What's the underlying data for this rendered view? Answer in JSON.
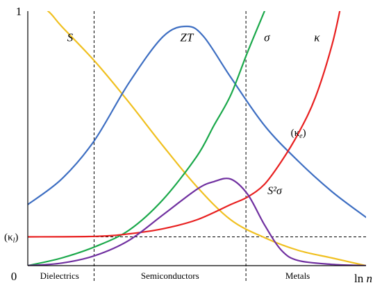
{
  "chart_data": {
    "type": "line",
    "title": "",
    "xlabel": "ln n",
    "ylabel": "",
    "xlim": [
      0,
      1
    ],
    "ylim": [
      0,
      1
    ],
    "y_ticks": [
      {
        "value": 1,
        "label": "1"
      },
      {
        "value": 0,
        "label": "0"
      },
      {
        "value": 0.113,
        "label": "(κl)"
      }
    ],
    "x_axis_label": "ln n",
    "regions": [
      {
        "name": "Dielectrics",
        "from": 0,
        "to": 0.196
      },
      {
        "name": "Semiconductors",
        "from": 0.196,
        "to": 0.645
      },
      {
        "name": "Metals",
        "from": 0.645,
        "to": 1
      }
    ],
    "reference_lines": [
      {
        "orientation": "vertical",
        "x": 0.196
      },
      {
        "orientation": "vertical",
        "x": 0.645
      },
      {
        "orientation": "horizontal",
        "y": 0.113
      }
    ],
    "annotations": [
      {
        "text": "S",
        "x": 0.125,
        "y": 0.882
      },
      {
        "text": "ZT",
        "x": 0.47,
        "y": 0.882
      },
      {
        "text": "σ",
        "x": 0.707,
        "y": 0.882
      },
      {
        "text": "κ",
        "x": 0.855,
        "y": 0.882
      },
      {
        "text": "(κe)",
        "x": 0.8,
        "y": 0.51
      },
      {
        "text": "S²σ",
        "x": 0.73,
        "y": 0.28
      }
    ],
    "series": [
      {
        "color": "#f0c020",
        "x": [
          0,
          0.06,
          0.1,
          0.2,
          0.3,
          0.4,
          0.5,
          0.6,
          0.7,
          0.8,
          0.9,
          1.0
        ],
        "values": [
          1.05,
          1.0,
          0.94,
          0.8,
          0.64,
          0.47,
          0.31,
          0.18,
          0.11,
          0.06,
          0.03,
          0.0
        ]
      },
      {
        "color": "#3d6ec2",
        "x": [
          0,
          0.1,
          0.196,
          0.3,
          0.4,
          0.47,
          0.52,
          0.6,
          0.7,
          0.8,
          0.9,
          1.0
        ],
        "values": [
          0.24,
          0.34,
          0.49,
          0.72,
          0.9,
          0.94,
          0.9,
          0.74,
          0.55,
          0.41,
          0.29,
          0.19
        ]
      },
      {
        "color": "#1aa84a",
        "x": [
          0,
          0.1,
          0.2,
          0.3,
          0.4,
          0.5,
          0.55,
          0.6,
          0.65,
          0.7,
          0.715
        ],
        "values": [
          0.0,
          0.03,
          0.075,
          0.14,
          0.26,
          0.43,
          0.55,
          0.67,
          0.84,
          1.0,
          1.05
        ]
      },
      {
        "color": "#e82020",
        "x": [
          0,
          0.2,
          0.3,
          0.4,
          0.5,
          0.6,
          0.65,
          0.7,
          0.75,
          0.8,
          0.85,
          0.9,
          0.93
        ],
        "values": [
          0.113,
          0.115,
          0.125,
          0.145,
          0.18,
          0.24,
          0.27,
          0.32,
          0.41,
          0.52,
          0.66,
          0.87,
          1.05
        ]
      },
      {
        "color": "#7030a0",
        "x": [
          0,
          0.1,
          0.2,
          0.3,
          0.4,
          0.5,
          0.55,
          0.6,
          0.65,
          0.7,
          0.75,
          0.8,
          0.9,
          1.0
        ],
        "values": [
          0.0,
          0.01,
          0.04,
          0.1,
          0.2,
          0.3,
          0.33,
          0.34,
          0.28,
          0.16,
          0.06,
          0.02,
          0.005,
          0.0
        ]
      }
    ]
  },
  "colors": {
    "S": "#f0c020",
    "ZT": "#3d6ec2",
    "sigma": "#1aa84a",
    "kappa": "#e82020",
    "S2sigma": "#7030a0"
  }
}
